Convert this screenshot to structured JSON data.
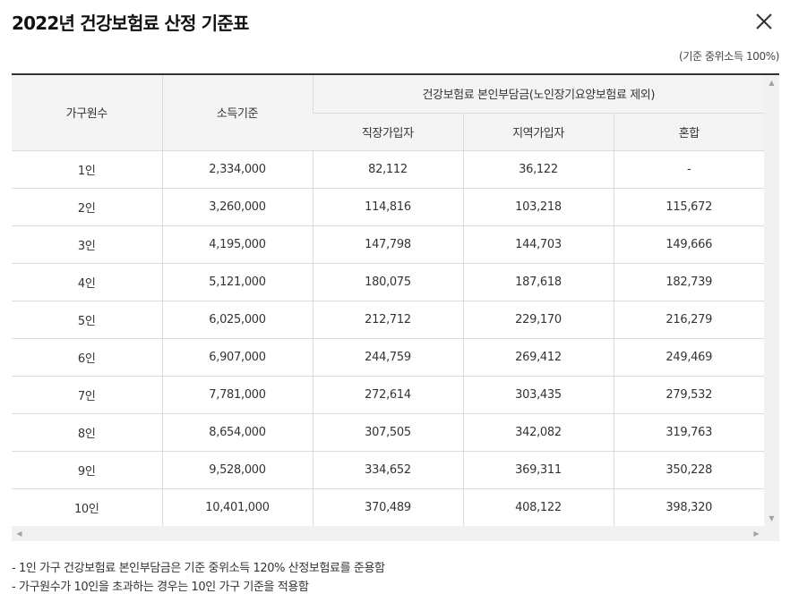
{
  "modal": {
    "title": "2022년 건강보험료 산정 기준표",
    "basis_note": "(기준 중위소득 100%)"
  },
  "table": {
    "headers": {
      "household": "가구원수",
      "income": "소득기준",
      "premium_group": "건강보험료 본인부담금(노인장기요양보험료 제외)",
      "employee": "직장가입자",
      "regional": "지역가입자",
      "mixed": "혼합"
    },
    "rows": [
      {
        "household": "1인",
        "income": "2,334,000",
        "employee": "82,112",
        "regional": "36,122",
        "mixed": "-"
      },
      {
        "household": "2인",
        "income": "3,260,000",
        "employee": "114,816",
        "regional": "103,218",
        "mixed": "115,672"
      },
      {
        "household": "3인",
        "income": "4,195,000",
        "employee": "147,798",
        "regional": "144,703",
        "mixed": "149,666"
      },
      {
        "household": "4인",
        "income": "5,121,000",
        "employee": "180,075",
        "regional": "187,618",
        "mixed": "182,739"
      },
      {
        "household": "5인",
        "income": "6,025,000",
        "employee": "212,712",
        "regional": "229,170",
        "mixed": "216,279"
      },
      {
        "household": "6인",
        "income": "6,907,000",
        "employee": "244,759",
        "regional": "269,412",
        "mixed": "249,469"
      },
      {
        "household": "7인",
        "income": "7,781,000",
        "employee": "272,614",
        "regional": "303,435",
        "mixed": "279,532"
      },
      {
        "household": "8인",
        "income": "8,654,000",
        "employee": "307,505",
        "regional": "342,082",
        "mixed": "319,763"
      },
      {
        "household": "9인",
        "income": "9,528,000",
        "employee": "334,652",
        "regional": "369,311",
        "mixed": "350,228"
      },
      {
        "household": "10인",
        "income": "10,401,000",
        "employee": "370,489",
        "regional": "408,122",
        "mixed": "398,320"
      }
    ]
  },
  "footnotes": [
    "- 1인 가구 건강보험료 본인부담금은 기준 중위소득 120% 산정보험료를 준용함",
    "- 가구원수가 10인을 초과하는 경우는 10인 가구 기준을 적용함"
  ],
  "icons": {
    "close": "close-icon",
    "scroll_up": "scroll-up-arrow-icon",
    "scroll_down": "scroll-down-arrow-icon",
    "scroll_left": "scroll-left-arrow-icon",
    "scroll_right": "scroll-right-arrow-icon"
  }
}
